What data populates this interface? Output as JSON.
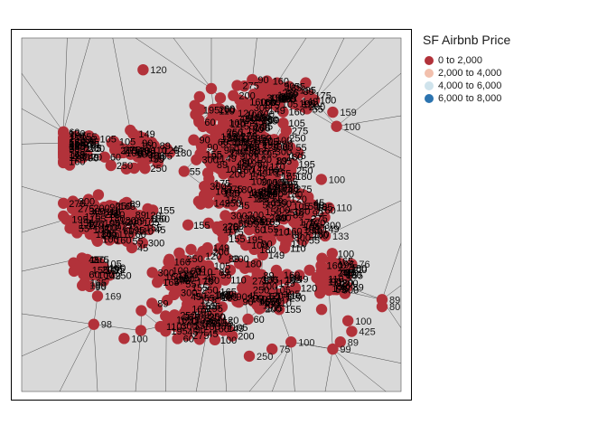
{
  "chart_data": {
    "type": "scatter",
    "subtype": "point map with voronoi tessellation",
    "title": "SF Airbnb Price",
    "legend": {
      "title": "SF Airbnb Price",
      "placement": "right",
      "entries": [
        {
          "label": "0 to 2,000",
          "color": "#b2323a"
        },
        {
          "label": "2,000 to 4,000",
          "color": "#f2c0ad"
        },
        {
          "label": "4,000 to 6,000",
          "color": "#cfe3ec"
        },
        {
          "label": "6,000 to 8,000",
          "color": "#2c74b0"
        }
      ]
    },
    "x_range": [
      0,
      100
    ],
    "y_range": [
      0,
      100
    ],
    "seed": 17,
    "dense_label_values": [
      "100",
      "150",
      "120",
      "95",
      "200",
      "75",
      "250",
      "85",
      "110",
      "65",
      "175",
      "135",
      "55",
      "99",
      "180",
      "129",
      "89",
      "125",
      "300",
      "140",
      "60",
      "225",
      "195",
      "79",
      "149",
      "115",
      "90",
      "70",
      "165",
      "199",
      "160",
      "130",
      "105",
      "179",
      "45",
      "189",
      "275",
      "145",
      "155",
      "350"
    ],
    "points": [
      {
        "x": 32,
        "y": 91,
        "price": 120
      },
      {
        "x": 19,
        "y": 19,
        "price": 98
      },
      {
        "x": 27,
        "y": 15,
        "price": 100
      },
      {
        "x": 66,
        "y": 12,
        "price": 75
      },
      {
        "x": 71,
        "y": 14,
        "price": 100
      },
      {
        "x": 84,
        "y": 14,
        "price": 89
      },
      {
        "x": 87,
        "y": 36,
        "price": 76
      },
      {
        "x": 95,
        "y": 26,
        "price": 89
      },
      {
        "x": 95,
        "y": 24,
        "price": 80
      },
      {
        "x": 82,
        "y": 79,
        "price": 159
      },
      {
        "x": 83,
        "y": 75,
        "price": 100
      },
      {
        "x": 79,
        "y": 60,
        "price": 100
      },
      {
        "x": 81,
        "y": 52,
        "price": 110
      },
      {
        "x": 80,
        "y": 44,
        "price": 133
      },
      {
        "x": 86,
        "y": 20,
        "price": 100
      },
      {
        "x": 87,
        "y": 17,
        "price": 425
      },
      {
        "x": 82,
        "y": 12,
        "price": 99
      },
      {
        "x": 60,
        "y": 10,
        "price": 250
      },
      {
        "x": 16,
        "y": 30,
        "price": 189
      },
      {
        "x": 20,
        "y": 27,
        "price": 169
      }
    ]
  }
}
